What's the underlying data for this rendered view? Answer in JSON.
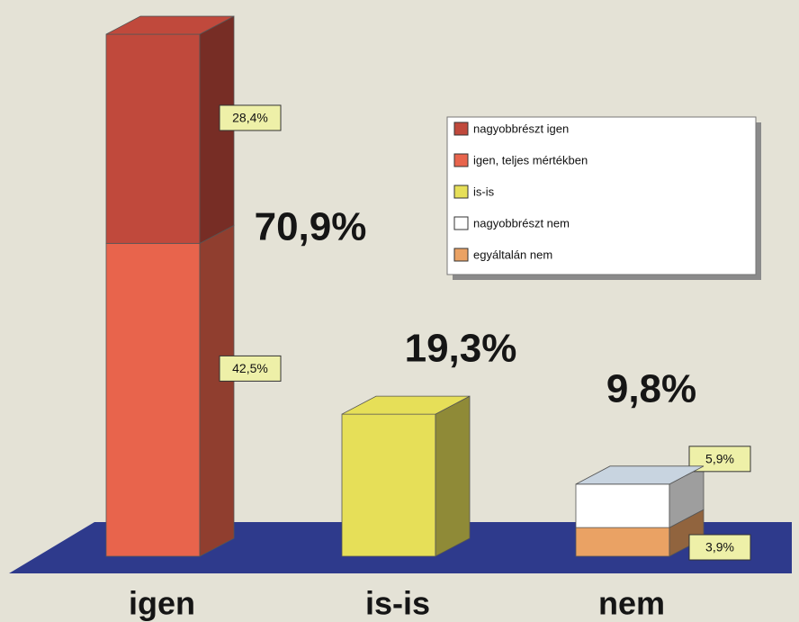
{
  "chart_data": {
    "type": "bar3d_stacked",
    "categories": [
      "igen",
      "is-is",
      "nem"
    ],
    "series": [
      {
        "name": "nagyobbrészt igen",
        "color": "#c0493c",
        "values": [
          28.4,
          null,
          null
        ],
        "value_labels": [
          "28,4%",
          null,
          null
        ]
      },
      {
        "name": "igen, teljes mértékben",
        "color": "#e8644c",
        "values": [
          42.5,
          null,
          null
        ],
        "value_labels": [
          "42,5%",
          null,
          null
        ]
      },
      {
        "name": "is-is",
        "color": "#e6df58",
        "values": [
          null,
          19.3,
          null
        ],
        "value_labels": [
          null,
          null,
          null
        ]
      },
      {
        "name": "nagyobbrészt nem",
        "color": "#ffffff",
        "values": [
          null,
          null,
          5.9
        ],
        "value_labels": [
          null,
          null,
          "5,9%"
        ]
      },
      {
        "name": "egyáltalán nem",
        "color": "#eaa264",
        "values": [
          null,
          null,
          3.9
        ],
        "value_labels": [
          null,
          null,
          "3,9%"
        ]
      }
    ],
    "totals": [
      70.9,
      19.3,
      9.8
    ],
    "total_labels": [
      "70,9%",
      "19,3%",
      "9,8%"
    ],
    "legend": "top-right"
  }
}
